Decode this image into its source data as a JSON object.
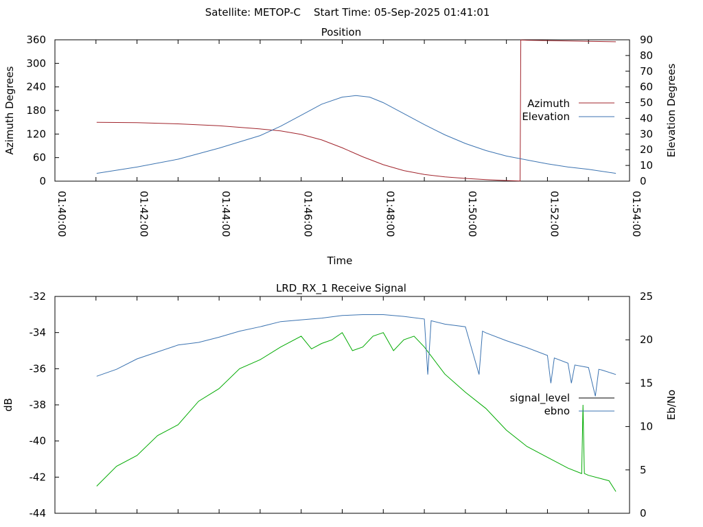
{
  "header": {
    "satellite": "Satellite: METOP-C",
    "start_time": "Start Time: 05-Sep-2025 01:41:01"
  },
  "chart_data": [
    {
      "id": "position",
      "type": "line",
      "title": "Position",
      "xlabel": "Time",
      "ylabel": "Azimuth Degrees",
      "y2label": "Elevation Degrees",
      "xlim": [
        "01:40:00",
        "01:54:00"
      ],
      "ylim": [
        0,
        360
      ],
      "y2lim": [
        0,
        90
      ],
      "x_ticks": [
        "01:40:00",
        "01:42:00",
        "01:44:00",
        "01:46:00",
        "01:48:00",
        "01:50:00",
        "01:52:00",
        "01:54:00"
      ],
      "y_ticks": [
        "0",
        "60",
        "120",
        "180",
        "240",
        "300",
        "360"
      ],
      "y2_ticks": [
        "0",
        "10",
        "20",
        "30",
        "40",
        "50",
        "60",
        "70",
        "80",
        "90"
      ],
      "grid": false,
      "legend_position": "right",
      "series": [
        {
          "name": "Azimuth",
          "color": "#a0222a",
          "axis": "y",
          "x": [
            "01:41:01",
            "01:42:00",
            "01:43:00",
            "01:44:00",
            "01:45:00",
            "01:45:30",
            "01:46:00",
            "01:46:30",
            "01:47:00",
            "01:47:30",
            "01:48:00",
            "01:48:30",
            "01:49:00",
            "01:49:30",
            "01:50:00",
            "01:50:30",
            "01:51:00",
            "01:51:20",
            "01:51:21",
            "01:51:30",
            "01:52:00",
            "01:53:00",
            "01:53:40"
          ],
          "values": [
            150,
            149,
            146,
            141,
            133,
            128,
            119,
            105,
            85,
            62,
            42,
            27,
            17,
            11,
            7,
            4,
            1.5,
            0.5,
            359.5,
            359,
            358,
            356,
            355
          ]
        },
        {
          "name": "Elevation",
          "color": "#3a72b0",
          "axis": "y2",
          "x": [
            "01:41:01",
            "01:42:00",
            "01:43:00",
            "01:44:00",
            "01:45:00",
            "01:45:30",
            "01:46:00",
            "01:46:30",
            "01:47:00",
            "01:47:20",
            "01:47:40",
            "01:48:00",
            "01:48:30",
            "01:49:00",
            "01:49:30",
            "01:50:00",
            "01:50:30",
            "01:51:00",
            "01:51:30",
            "01:52:00",
            "01:52:30",
            "01:53:00",
            "01:53:40"
          ],
          "values": [
            5,
            9,
            14,
            21,
            29,
            35,
            42,
            49,
            53.5,
            54.5,
            53.5,
            50,
            43,
            36,
            29.5,
            24,
            19.5,
            16,
            13.5,
            11,
            9,
            7.5,
            5
          ]
        }
      ]
    },
    {
      "id": "signal",
      "type": "line",
      "title": "LRD_RX_1 Receive Signal",
      "ylabel": "dB",
      "y2label": "Eb/No",
      "xlim": [
        "01:40:00",
        "01:54:00"
      ],
      "ylim": [
        -44,
        -32
      ],
      "y2lim": [
        0,
        25
      ],
      "y_ticks": [
        "-44",
        "-42",
        "-40",
        "-38",
        "-36",
        "-34",
        "-32"
      ],
      "y2_ticks": [
        "0",
        "5",
        "10",
        "15",
        "20",
        "25"
      ],
      "grid": false,
      "legend_position": "right",
      "series": [
        {
          "name": "signal_level",
          "color": "#00aa00",
          "legend_color": "#000000",
          "axis": "y",
          "x": [
            "01:41:01",
            "01:41:30",
            "01:42:00",
            "01:42:30",
            "01:43:00",
            "01:43:30",
            "01:44:00",
            "01:44:30",
            "01:45:00",
            "01:45:30",
            "01:46:00",
            "01:46:15",
            "01:46:30",
            "01:46:45",
            "01:47:00",
            "01:47:15",
            "01:47:30",
            "01:47:45",
            "01:48:00",
            "01:48:15",
            "01:48:30",
            "01:48:45",
            "01:49:00",
            "01:49:30",
            "01:50:00",
            "01:50:30",
            "01:51:00",
            "01:51:30",
            "01:52:00",
            "01:52:30",
            "01:52:50",
            "01:52:52",
            "01:52:54",
            "01:53:00",
            "01:53:30",
            "01:53:40"
          ],
          "values": [
            -42.5,
            -41.4,
            -40.8,
            -39.7,
            -39.1,
            -37.8,
            -37.1,
            -36.0,
            -35.5,
            -34.8,
            -34.2,
            -34.9,
            -34.6,
            -34.4,
            -34.0,
            -35.0,
            -34.8,
            -34.2,
            -34.0,
            -35.0,
            -34.4,
            -34.2,
            -34.8,
            -36.3,
            -37.3,
            -38.2,
            -39.4,
            -40.3,
            -40.9,
            -41.5,
            -41.8,
            -38.0,
            -41.8,
            -41.9,
            -42.2,
            -42.8
          ]
        },
        {
          "name": "ebno",
          "color": "#3a72b0",
          "axis": "y2",
          "x": [
            "01:41:01",
            "01:41:30",
            "01:42:00",
            "01:42:30",
            "01:43:00",
            "01:43:30",
            "01:44:00",
            "01:44:30",
            "01:45:00",
            "01:45:30",
            "01:46:00",
            "01:46:30",
            "01:47:00",
            "01:47:30",
            "01:48:00",
            "01:48:30",
            "01:49:00",
            "01:49:05",
            "01:49:10",
            "01:49:30",
            "01:50:00",
            "01:50:20",
            "01:50:25",
            "01:50:30",
            "01:51:00",
            "01:51:30",
            "01:52:00",
            "01:52:05",
            "01:52:10",
            "01:52:30",
            "01:52:35",
            "01:52:40",
            "01:53:00",
            "01:53:10",
            "01:53:15",
            "01:53:20",
            "01:53:40"
          ],
          "values": [
            15.8,
            16.6,
            17.8,
            18.6,
            19.4,
            19.7,
            20.3,
            21.0,
            21.5,
            22.1,
            22.3,
            22.5,
            22.8,
            22.9,
            22.9,
            22.7,
            22.4,
            16.0,
            22.2,
            21.8,
            21.5,
            16.0,
            21.0,
            20.8,
            19.9,
            19.1,
            18.2,
            15.0,
            17.9,
            17.3,
            15.0,
            17.1,
            16.8,
            13.5,
            16.6,
            16.5,
            16.0
          ]
        }
      ]
    }
  ]
}
